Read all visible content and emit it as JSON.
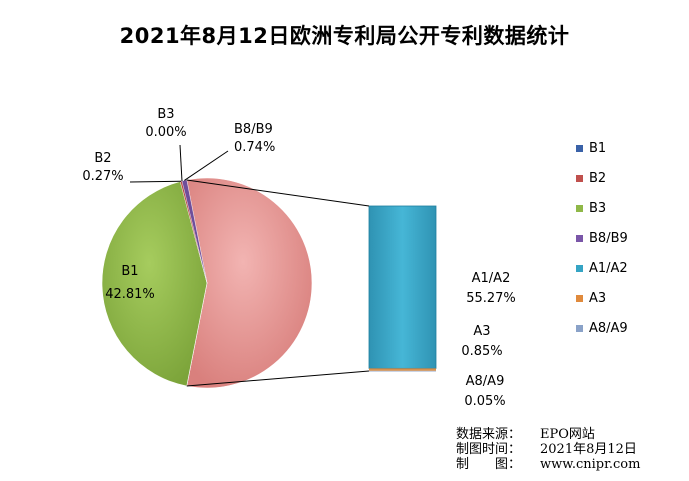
{
  "chart_data": {
    "type": "pie",
    "title": "2021年8月12日欧洲专利局公开专利数据统计",
    "pie_slices": [
      {
        "name": "B1",
        "value_label": "42.81%",
        "value": 42.81,
        "color": "#8fb848"
      },
      {
        "name": "B2",
        "value_label": "0.27%",
        "value": 0.27,
        "color": "#b84a48"
      },
      {
        "name": "B3",
        "value_label": "0.00%",
        "value": 0.0,
        "color": "#98b950"
      },
      {
        "name": "B8/B9",
        "value_label": "0.74%",
        "value": 0.74,
        "color": "#6f4e9a"
      },
      {
        "name": "A",
        "value": 56.17,
        "color": "#e69a98"
      }
    ],
    "bar_of_pie": [
      {
        "name": "A1/A2",
        "value_label": "55.27%",
        "value": 55.27,
        "color": "#35a4c4"
      },
      {
        "name": "A3",
        "value_label": "0.85%",
        "value": 0.85,
        "color": "#d9924e"
      },
      {
        "name": "A8/A9",
        "value_label": "0.05%",
        "value": 0.05,
        "color": "#8aa2c8"
      }
    ],
    "legend": [
      "B1",
      "B2",
      "B3",
      "B8/B9",
      "A1/A2",
      "A3",
      "A8/A9"
    ],
    "legend_position": "right"
  },
  "legend_colors": [
    "#3a62a8",
    "#c0504d",
    "#8fb848",
    "#7a56a8",
    "#35a4c4",
    "#e08a3c",
    "#8aa2c8"
  ],
  "footer": {
    "source_key": "数据来源：",
    "source_value": "EPO网站",
    "time_key": "制图时间：",
    "time_value": "2021年8月12日",
    "maker_key": "制　　图：",
    "maker_value": "www.cnipr.com"
  }
}
